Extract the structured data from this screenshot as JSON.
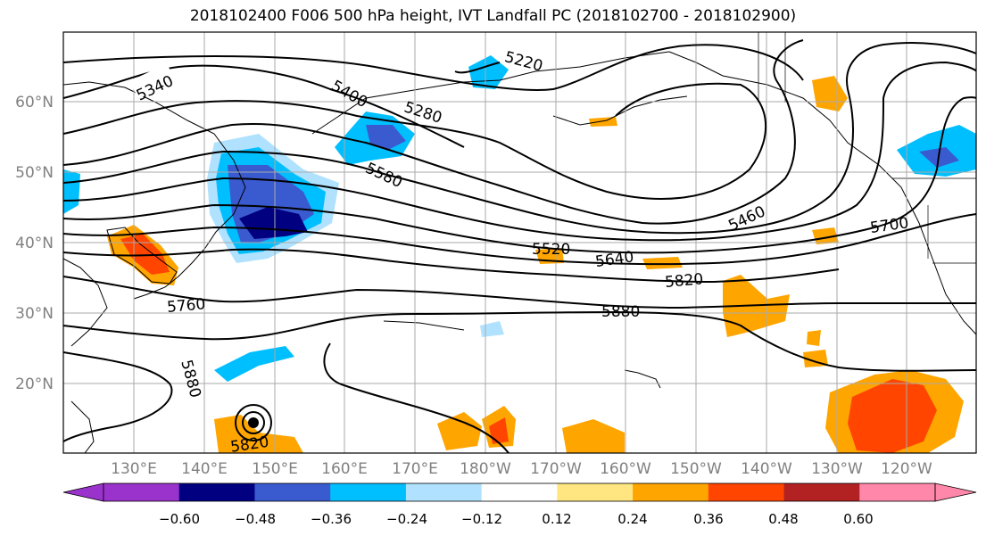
{
  "title": "2018102400 F006 500 hPa height, IVT Landfall PC (2018102700 - 2018102900)",
  "lat_labels": [
    "60°N",
    "50°N",
    "40°N",
    "30°N",
    "20°N"
  ],
  "lon_labels": [
    "130°E",
    "140°E",
    "150°E",
    "160°E",
    "170°E",
    "180°W",
    "170°W",
    "160°W",
    "150°W",
    "140°W",
    "130°W",
    "120°W"
  ],
  "contour_labels": [
    {
      "text": "5340"
    },
    {
      "text": "5400"
    },
    {
      "text": "5280"
    },
    {
      "text": "5220"
    },
    {
      "text": "5580"
    },
    {
      "text": "5460"
    },
    {
      "text": "5700"
    },
    {
      "text": "5520"
    },
    {
      "text": "5640"
    },
    {
      "text": "5820"
    },
    {
      "text": "5760"
    },
    {
      "text": "5880"
    },
    {
      "text": "5880"
    },
    {
      "text": "5820"
    }
  ],
  "colorbar": {
    "tick_labels": [
      "−0.60",
      "−0.48",
      "−0.36",
      "−0.24",
      "−0.12",
      "0.12",
      "0.24",
      "0.36",
      "0.48",
      "0.60"
    ],
    "colors": [
      "#9933cc",
      "#000080",
      "#3a5bd0",
      "#00bfff",
      "#b0e2ff",
      "#ffffff",
      "#ffe680",
      "#ffa500",
      "#ff4500",
      "#b22222",
      "#ff88aa"
    ]
  },
  "map_colors": {
    "land_outline": "#000000",
    "grid": "#aaaaaa",
    "contour": "#000000"
  }
}
